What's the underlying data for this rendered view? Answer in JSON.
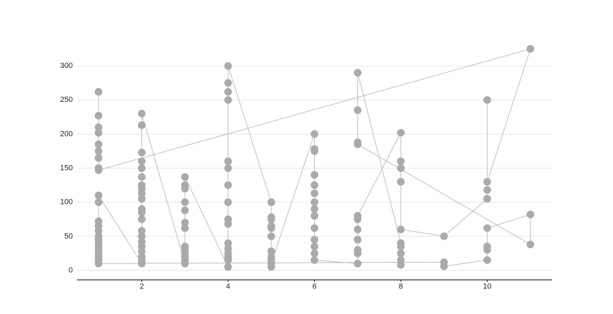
{
  "chart_data": {
    "type": "line",
    "x": [
      1,
      1,
      1,
      1,
      1,
      1,
      1,
      1,
      1,
      11,
      10,
      10,
      10,
      10,
      9,
      8,
      8,
      8,
      8,
      8,
      7,
      7,
      7,
      7,
      7,
      7,
      7,
      6,
      6,
      6,
      6,
      6,
      6,
      6,
      6,
      6,
      6,
      6,
      6,
      6,
      6,
      5,
      5,
      5,
      5,
      5,
      5,
      5,
      5,
      5,
      5,
      5,
      4,
      4,
      4,
      4,
      4,
      4,
      4,
      4,
      4,
      4,
      4,
      4,
      4,
      4,
      4,
      4,
      3,
      3,
      3,
      3,
      3,
      3,
      3,
      3,
      3,
      3,
      3,
      3,
      3,
      2,
      2,
      2,
      2,
      2,
      2,
      2,
      2,
      2,
      2,
      2,
      2,
      2,
      2,
      2,
      2,
      2,
      2,
      2,
      2,
      2,
      1,
      1,
      1,
      1,
      1,
      1,
      1,
      1,
      1,
      1,
      1,
      1,
      1,
      1,
      9,
      9,
      10,
      10,
      10,
      10,
      11,
      11,
      7,
      7,
      7,
      7,
      8,
      8,
      8,
      8,
      8
    ],
    "values": [
      262,
      227,
      210,
      202,
      185,
      175,
      165,
      150,
      147,
      325,
      130,
      250,
      118,
      105,
      50,
      60,
      130,
      150,
      160,
      202,
      80,
      75,
      60,
      45,
      30,
      25,
      10,
      15,
      25,
      35,
      45,
      62,
      80,
      90,
      100,
      113,
      125,
      140,
      175,
      178,
      200,
      10,
      5,
      15,
      20,
      28,
      50,
      62,
      65,
      75,
      78,
      100,
      300,
      275,
      262,
      250,
      160,
      150,
      125,
      100,
      75,
      68,
      40,
      32,
      25,
      20,
      15,
      5,
      137,
      125,
      120,
      100,
      88,
      70,
      62,
      35,
      30,
      25,
      20,
      15,
      10,
      230,
      213,
      173,
      160,
      150,
      137,
      125,
      120,
      113,
      105,
      90,
      85,
      75,
      58,
      50,
      42,
      35,
      28,
      20,
      15,
      10,
      110,
      100,
      72,
      65,
      58,
      50,
      45,
      40,
      35,
      30,
      25,
      20,
      15,
      10,
      12,
      6,
      15,
      30,
      35,
      62,
      82,
      38,
      185,
      188,
      235,
      290,
      40,
      35,
      25,
      15,
      8
    ],
    "color": "#aaaaaa",
    "xlim": [
      0.5,
      11.5
    ],
    "ylim": [
      -14,
      330
    ],
    "xticks": [
      2,
      4,
      6,
      8,
      10
    ],
    "yticks": [
      0,
      50,
      100,
      150,
      200,
      250,
      300
    ],
    "grid": true
  }
}
